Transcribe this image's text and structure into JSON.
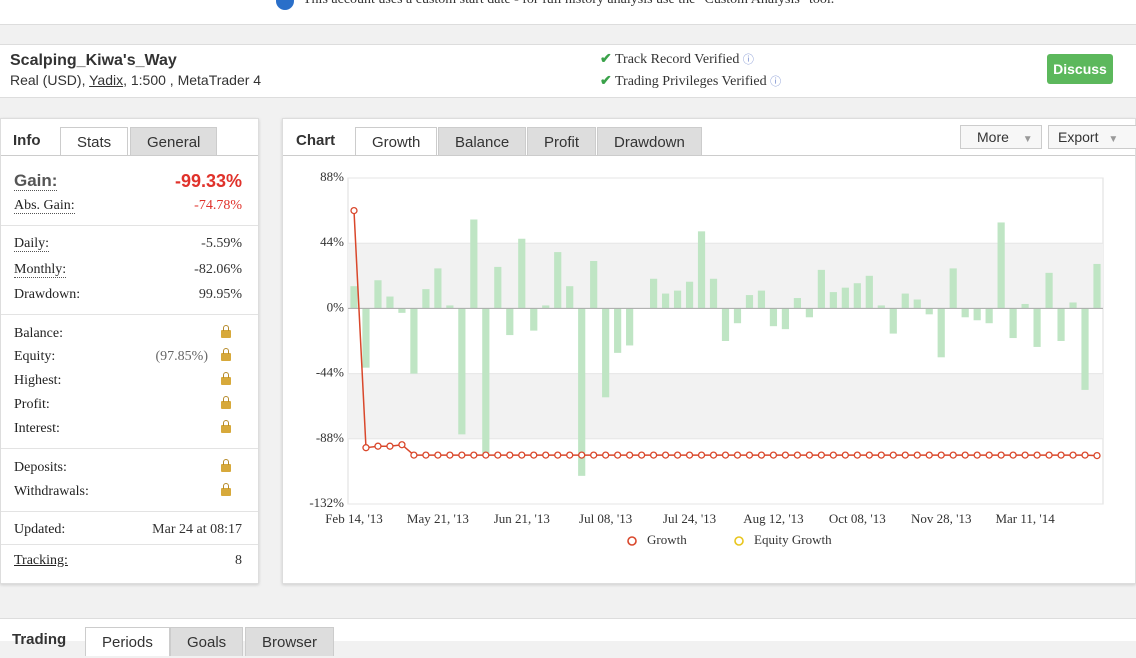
{
  "banner": "This account uses a custom start date - for full history analysis use the \"Custom Analysis\" tool.",
  "account": {
    "name": "Scalping_Kiwa's_Way",
    "type": "Real (USD),",
    "broker": "Yadix",
    "rest": ", 1:500 , MetaTrader 4"
  },
  "verifications": [
    "Track Record Verified",
    "Trading Privileges Verified"
  ],
  "discuss": "Discuss",
  "info_tabs": [
    "Info",
    "Stats",
    "General"
  ],
  "stats": {
    "gain": {
      "label": "Gain:",
      "value": "-99.33%"
    },
    "abs_gain": {
      "label": "Abs. Gain:",
      "value": "-74.78%"
    },
    "daily": {
      "label": "Daily:",
      "value": "-5.59%"
    },
    "monthly": {
      "label": "Monthly:",
      "value": "-82.06%"
    },
    "drawdown": {
      "label": "Drawdown:",
      "value": "99.95%"
    },
    "balance": "Balance:",
    "equity": {
      "label": "Equity:",
      "value": "(97.85%)"
    },
    "highest": "Highest:",
    "profit": "Profit:",
    "interest": "Interest:",
    "deposits": "Deposits:",
    "withdrawals": "Withdrawals:",
    "updated": {
      "label": "Updated:",
      "value": "Mar 24 at 08:17"
    },
    "tracking": {
      "label": "Tracking:",
      "value": "8"
    }
  },
  "chart_panel": {
    "title": "Chart",
    "tabs": [
      "Growth",
      "Balance",
      "Profit",
      "Drawdown"
    ],
    "buttons": [
      "More",
      "Export"
    ]
  },
  "bottom_tabs": [
    "Trading",
    "Periods",
    "Goals",
    "Browser"
  ],
  "chart_data": {
    "type": "bar",
    "categories": [
      "Feb 14, '13",
      null,
      null,
      null,
      null,
      null,
      null,
      "May 21, '13",
      null,
      null,
      null,
      null,
      null,
      null,
      "Jun 21, '13",
      null,
      null,
      null,
      null,
      null,
      null,
      "Jul 08, '13",
      null,
      null,
      null,
      null,
      null,
      null,
      "Jul 24, '13",
      null,
      null,
      null,
      null,
      null,
      null,
      "Aug 12, '13",
      null,
      null,
      null,
      null,
      null,
      null,
      "Oct 08, '13",
      null,
      null,
      null,
      null,
      null,
      null,
      "Nov 28, '13",
      null,
      null,
      null,
      null,
      null,
      null,
      "Mar 11, '14",
      null,
      null,
      null,
      null,
      null,
      null
    ],
    "bars": {
      "color": "#bfe5c4",
      "values": [
        15,
        -40,
        19,
        8,
        -3,
        -44,
        13,
        27,
        2,
        -85,
        60,
        -98,
        28,
        -18,
        47,
        -15,
        2,
        38,
        15,
        -113,
        32,
        -60,
        -30,
        -25,
        0,
        20,
        10,
        12,
        18,
        52,
        20,
        -22,
        -10,
        9,
        12,
        -12,
        -14,
        7,
        -6,
        26,
        11,
        14,
        17,
        22,
        2,
        -17,
        10,
        6,
        -4,
        -33,
        27,
        -6,
        -8,
        -10,
        58,
        -20,
        3,
        -26,
        24,
        -22,
        4,
        -55,
        30
      ]
    },
    "series": [
      {
        "name": "Growth",
        "color": "#d9472b",
        "values": [
          66,
          -94,
          -93,
          -93,
          -92,
          -99,
          -99,
          -99,
          -99,
          -99,
          -99,
          -99,
          -99,
          -99,
          -99,
          -99,
          -99,
          -99,
          -99,
          -99,
          -99,
          -99,
          -99,
          -99,
          -99,
          -99,
          -99,
          -99,
          -99,
          -99,
          -99,
          -99,
          -99,
          -99,
          -99,
          -99,
          -99,
          -99,
          -99,
          -99,
          -99,
          -99,
          -99,
          -99,
          -99,
          -99,
          -99,
          -99,
          -99,
          -99,
          -99,
          -99,
          -99,
          -99,
          -99,
          -99,
          -99,
          -99,
          -99,
          -99,
          -99,
          -99,
          -99.33
        ]
      },
      {
        "name": "Equity Growth",
        "color": "#e8c51c",
        "values": [
          null,
          null,
          null,
          null,
          null,
          null,
          null,
          null,
          null,
          null,
          null,
          null,
          null,
          null,
          null,
          null,
          null,
          null,
          null,
          null,
          null,
          null,
          null,
          null,
          null,
          null,
          null,
          null,
          null,
          null,
          null,
          null,
          null,
          null,
          null,
          null,
          null,
          null,
          null,
          null,
          null,
          null,
          null,
          null,
          null,
          null,
          null,
          null,
          null,
          null,
          null,
          null,
          null,
          null,
          null,
          null,
          null,
          null,
          null,
          null,
          null,
          null,
          null
        ]
      }
    ],
    "ylim": [
      -132,
      88
    ],
    "yticks": [
      {
        "value": 88,
        "label": "88%"
      },
      {
        "value": 44,
        "label": "44%"
      },
      {
        "value": 0,
        "label": "0%"
      },
      {
        "value": -44,
        "label": "-44%"
      },
      {
        "value": -88,
        "label": "-88%"
      },
      {
        "value": -132,
        "label": "-132%"
      }
    ],
    "bands": true
  }
}
